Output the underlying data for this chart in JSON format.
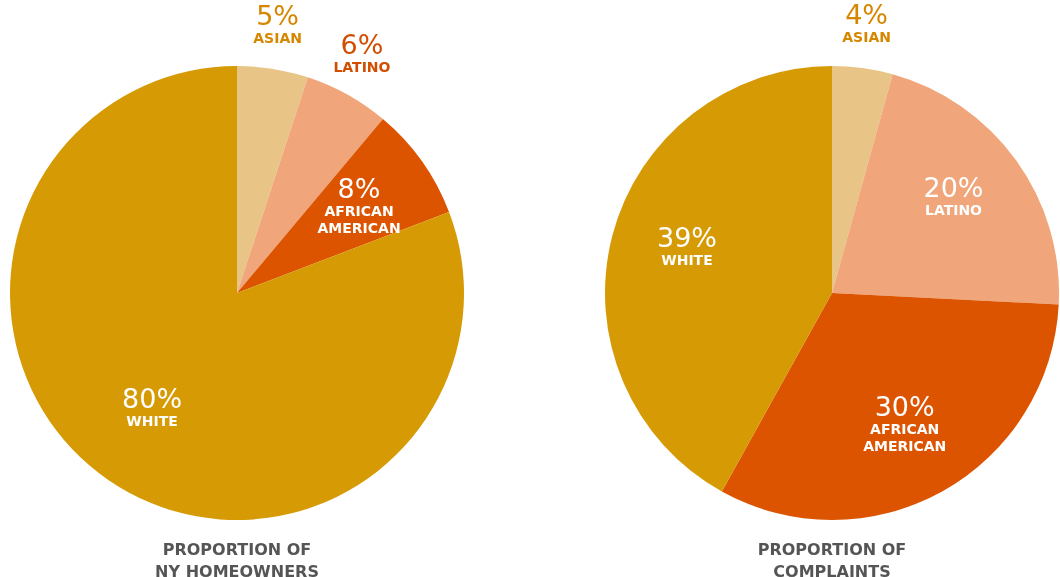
{
  "chart_data": [
    {
      "type": "pie",
      "title": "PROPORTION OF NY HOMEOWNERS",
      "categories": [
        "ASIAN",
        "LATINO",
        "AFRICAN AMERICAN",
        "WHITE"
      ],
      "values": [
        5,
        6,
        8,
        80
      ],
      "value_labels": [
        "5%",
        "6%",
        "8%",
        "80%"
      ],
      "colors": [
        "#e8c487",
        "#f0a67a",
        "#dc5400",
        "#d69a05"
      ]
    },
    {
      "type": "pie",
      "title": "PROPORTION OF COMPLAINTS",
      "categories": [
        "ASIAN",
        "LATINO",
        "AFRICAN AMERICAN",
        "WHITE"
      ],
      "values": [
        4,
        20,
        30,
        39
      ],
      "value_labels": [
        "4%",
        "20%",
        "30%",
        "39%"
      ],
      "colors": [
        "#e8c487",
        "#f0a67a",
        "#dc5400",
        "#d69a05"
      ]
    }
  ]
}
